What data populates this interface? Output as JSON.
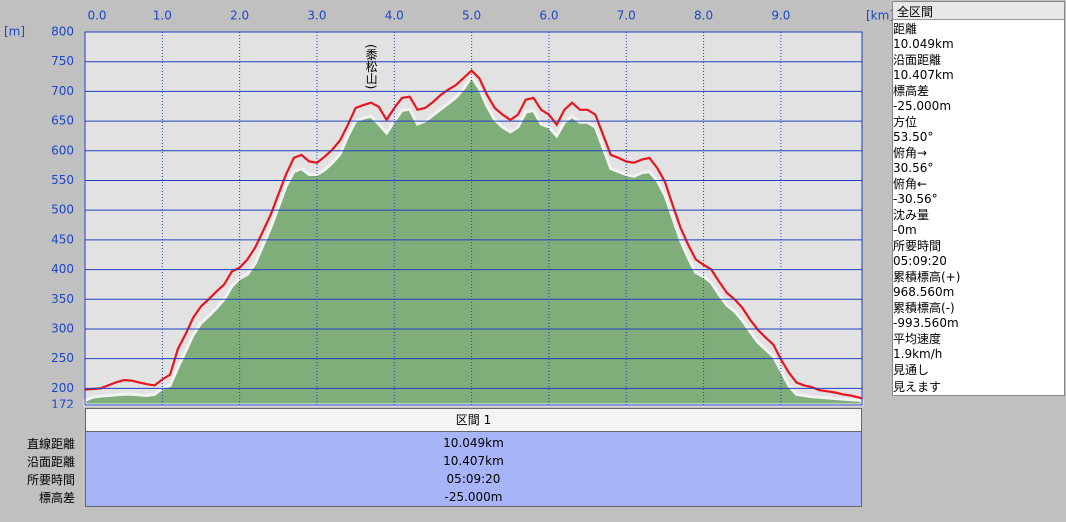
{
  "chart_data": {
    "type": "line",
    "y_unit": "[m]",
    "x_unit": "[km]",
    "xlim": [
      0,
      10.049
    ],
    "ylim": [
      172,
      800
    ],
    "xticks": [
      {
        "value": 0,
        "label": "0.0"
      },
      {
        "value": 1,
        "label": "1.0"
      },
      {
        "value": 2,
        "label": "2.0"
      },
      {
        "value": 3,
        "label": "3.0"
      },
      {
        "value": 4,
        "label": "4.0"
      },
      {
        "value": 5,
        "label": "5.0"
      },
      {
        "value": 6,
        "label": "6.0"
      },
      {
        "value": 7,
        "label": "7.0"
      },
      {
        "value": 8,
        "label": "8.0"
      },
      {
        "value": 9,
        "label": "9.0"
      }
    ],
    "yticks": [
      172,
      200,
      250,
      300,
      350,
      400,
      450,
      500,
      550,
      600,
      650,
      700,
      750,
      800
    ],
    "grid": true,
    "x": [
      0,
      0.1,
      0.2,
      0.3,
      0.4,
      0.5,
      0.6,
      0.7,
      0.8,
      0.9,
      1.0,
      1.1,
      1.2,
      1.3,
      1.4,
      1.5,
      1.6,
      1.7,
      1.8,
      1.9,
      2.0,
      2.1,
      2.2,
      2.3,
      2.4,
      2.5,
      2.6,
      2.7,
      2.8,
      2.9,
      3.0,
      3.1,
      3.2,
      3.3,
      3.4,
      3.5,
      3.6,
      3.7,
      3.8,
      3.9,
      4.0,
      4.1,
      4.2,
      4.3,
      4.4,
      4.5,
      4.6,
      4.7,
      4.8,
      4.9,
      5.0,
      5.1,
      5.2,
      5.3,
      5.4,
      5.5,
      5.6,
      5.7,
      5.8,
      5.9,
      6.0,
      6.1,
      6.2,
      6.3,
      6.4,
      6.5,
      6.6,
      6.7,
      6.8,
      6.9,
      7.0,
      7.1,
      7.2,
      7.3,
      7.4,
      7.5,
      7.6,
      7.7,
      7.8,
      7.9,
      8.0,
      8.1,
      8.2,
      8.3,
      8.4,
      8.5,
      8.6,
      8.7,
      8.8,
      8.9,
      9.0,
      9.1,
      9.2,
      9.3,
      9.4,
      9.5,
      9.6,
      9.7,
      9.8,
      9.9,
      10.0,
      10.049
    ],
    "series": [
      {
        "type": "area",
        "color": "#7fae7a",
        "values": [
          180,
          185,
          187,
          188,
          189,
          190,
          190,
          189,
          188,
          190,
          200,
          205,
          235,
          262,
          290,
          310,
          322,
          335,
          350,
          372,
          385,
          392,
          410,
          440,
          470,
          505,
          540,
          565,
          570,
          560,
          560,
          568,
          580,
          595,
          625,
          650,
          655,
          658,
          645,
          630,
          650,
          668,
          670,
          645,
          650,
          660,
          670,
          680,
          690,
          705,
          725,
          705,
          675,
          652,
          640,
          632,
          640,
          665,
          668,
          645,
          640,
          625,
          648,
          658,
          648,
          648,
          640,
          605,
          570,
          565,
          560,
          557,
          563,
          565,
          550,
          525,
          488,
          450,
          420,
          395,
          388,
          378,
          358,
          340,
          330,
          315,
          296,
          278,
          266,
          254,
          230,
          205,
          190,
          188,
          186,
          185,
          184,
          183,
          182,
          181,
          180,
          179
        ]
      },
      {
        "type": "line",
        "color": "#e8141e",
        "values": [
          198,
          199,
          200,
          205,
          210,
          214,
          213,
          210,
          207,
          205,
          215,
          223,
          266,
          291,
          319,
          338,
          350,
          363,
          375,
          397,
          403,
          417,
          437,
          464,
          492,
          526,
          560,
          588,
          593,
          582,
          580,
          590,
          602,
          618,
          644,
          672,
          677,
          681,
          674,
          652,
          672,
          689,
          691,
          669,
          672,
          682,
          694,
          703,
          711,
          723,
          735,
          722,
          694,
          672,
          661,
          652,
          661,
          686,
          689,
          669,
          661,
          644,
          669,
          681,
          669,
          669,
          661,
          627,
          593,
          588,
          582,
          580,
          585,
          588,
          571,
          548,
          509,
          471,
          442,
          417,
          408,
          400,
          380,
          361,
          350,
          336,
          316,
          299,
          286,
          274,
          249,
          227,
          210,
          205,
          202,
          197,
          195,
          193,
          190,
          188,
          185,
          183
        ]
      }
    ],
    "annotations": [
      {
        "text": "(黍松山)",
        "x": 3.7
      }
    ]
  },
  "summary_panel": {
    "title": "全区間",
    "rows": [
      [
        "距離",
        "10.049km"
      ],
      [
        "沿面距離",
        "10.407km"
      ],
      [
        "標高差",
        "-25.000m"
      ],
      [
        "方位",
        "53.50°"
      ],
      [
        "俯角→",
        "30.56°"
      ],
      [
        "俯角←",
        "-30.56°"
      ],
      [
        "沈み量",
        "-0m"
      ],
      [
        "所要時間",
        "05:09:20"
      ],
      [
        "累積標高(+)",
        "968.560m"
      ],
      [
        "累積標高(-)",
        "-993.560m"
      ],
      [
        "平均速度",
        "1.9km/h"
      ],
      [
        "見通し",
        "見えます"
      ]
    ]
  },
  "section_table": {
    "header": "区間 1",
    "rows": [
      [
        "直線距離",
        "10.049km"
      ],
      [
        "沿面距離",
        "10.407km"
      ],
      [
        "所要時間",
        "05:09:20"
      ],
      [
        "標高差",
        "-25.000m"
      ]
    ]
  }
}
